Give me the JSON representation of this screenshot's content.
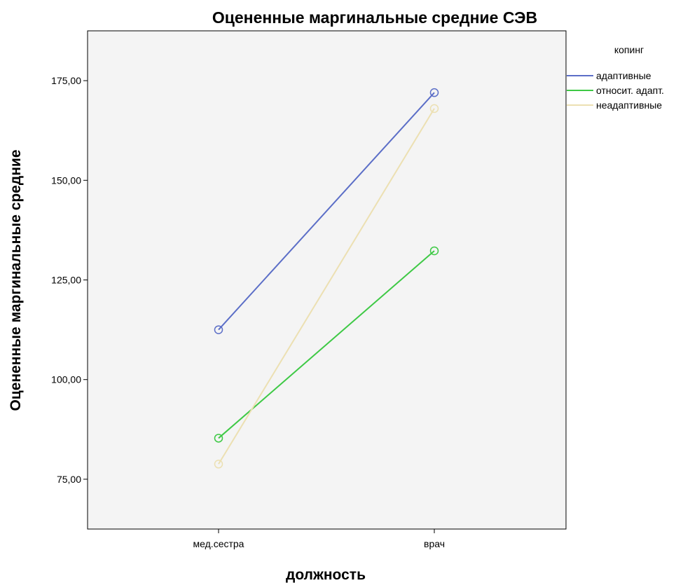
{
  "chart_data": {
    "type": "line",
    "title": "Оцененные маргинальные средние СЭВ",
    "xlabel": "должность",
    "ylabel": "Оцененные маргинальные средние",
    "categories": [
      "мед.сестра",
      "врач"
    ],
    "ylim": [
      62.5,
      187.5
    ],
    "yticks": [
      75,
      100,
      125,
      150,
      175
    ],
    "ytick_labels": [
      "75,00",
      "100,00",
      "125,00",
      "150,00",
      "175,00"
    ],
    "grid": false,
    "legend": {
      "title": "копинг",
      "placement": "right"
    },
    "plot_background": "#f4f4f4",
    "series": [
      {
        "name": "адаптивные",
        "color": "#5b6ec7",
        "values": [
          112.5,
          172.0
        ]
      },
      {
        "name": "относит. адапт.",
        "color": "#3ec945",
        "values": [
          85.3,
          132.3
        ]
      },
      {
        "name": "неадаптивные",
        "color": "#ece0b2",
        "values": [
          78.8,
          168.0
        ]
      }
    ]
  }
}
